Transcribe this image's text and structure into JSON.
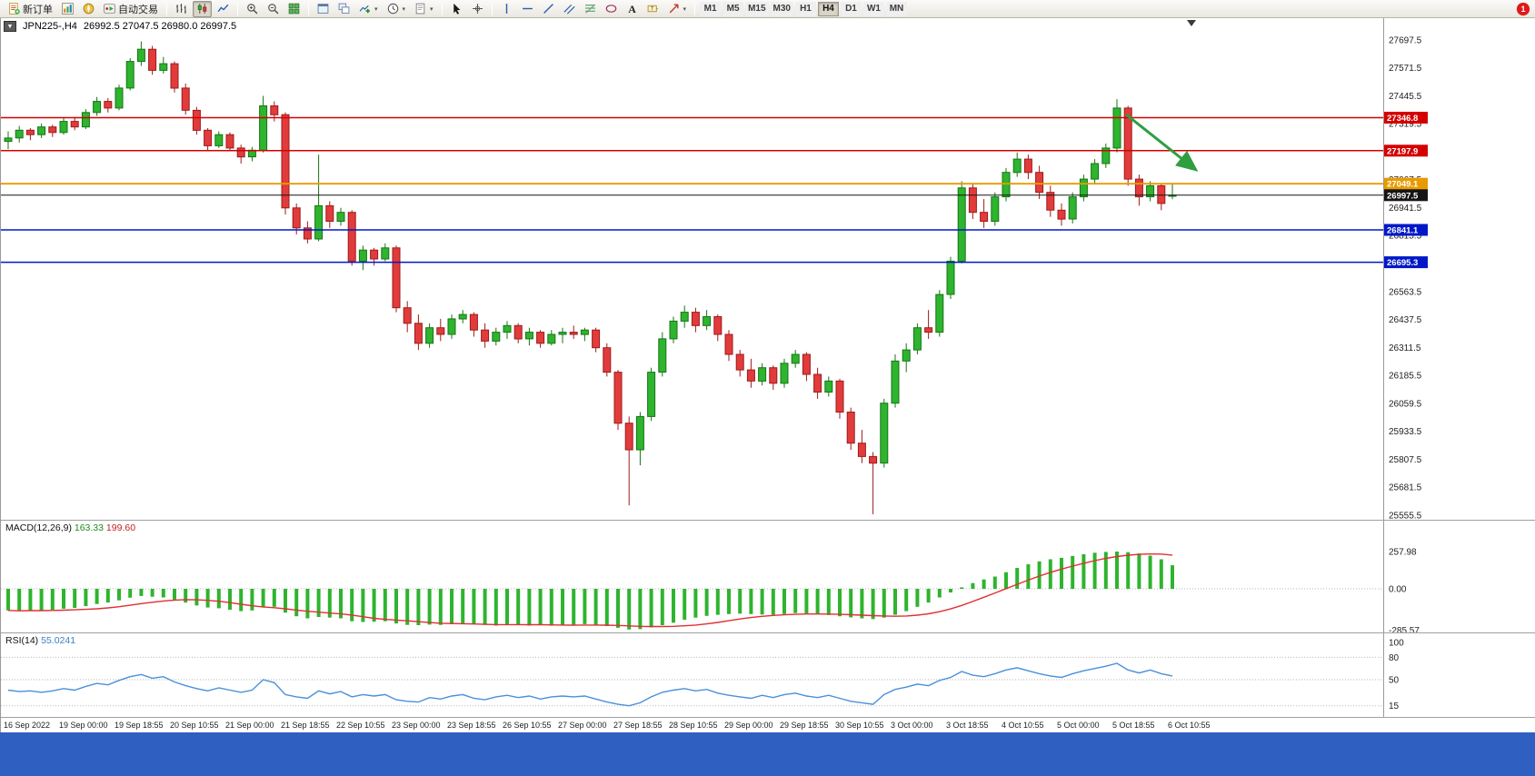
{
  "toolbar": {
    "buttons": [
      {
        "name": "new-order-button",
        "icon": "new-order-icon",
        "label": "新订单"
      },
      {
        "name": "market-watch-button",
        "icon": "market-watch-icon"
      },
      {
        "name": "navigator-button",
        "icon": "navigator-icon"
      },
      {
        "name": "autotrading-button",
        "icon": "autotrading-icon",
        "label": "自动交易"
      },
      {
        "sep": true
      },
      {
        "name": "bar-chart-button",
        "icon": "bar-chart-icon"
      },
      {
        "name": "candlestick-button",
        "icon": "candlestick-icon",
        "active": true
      },
      {
        "name": "line-chart-button",
        "icon": "line-chart-icon"
      },
      {
        "sep": true
      },
      {
        "name": "zoom-in-button",
        "icon": "zoom-in-icon"
      },
      {
        "name": "zoom-out-button",
        "icon": "zoom-out-icon"
      },
      {
        "name": "tile-windows-button",
        "icon": "tile-windows-icon"
      },
      {
        "sep": true
      },
      {
        "name": "auto-arrange-button",
        "icon": "auto-arrange-icon"
      },
      {
        "name": "cascade-button",
        "icon": "cascade-icon"
      },
      {
        "name": "indicators-button",
        "icon": "indicators-icon",
        "dropdown": true
      },
      {
        "name": "periods-button",
        "icon": "clock-icon",
        "dropdown": true
      },
      {
        "name": "templates-button",
        "icon": "template-icon",
        "dropdown": true
      },
      {
        "sep": true
      },
      {
        "name": "cursor-button",
        "icon": "cursor-icon"
      },
      {
        "name": "crosshair-button",
        "icon": "crosshair-icon"
      },
      {
        "sep": true
      },
      {
        "name": "vline-button",
        "icon": "vline-icon"
      },
      {
        "name": "hline-button",
        "icon": "hline-icon"
      },
      {
        "name": "trendline-button",
        "icon": "trendline-icon"
      },
      {
        "name": "channel-button",
        "icon": "channel-icon"
      },
      {
        "name": "fibonacci-button",
        "icon": "fibonacci-icon"
      },
      {
        "name": "shapes-button",
        "icon": "shapes-icon"
      },
      {
        "name": "text-button",
        "icon": "text-icon"
      },
      {
        "name": "label-button",
        "icon": "label-icon"
      },
      {
        "name": "arrows-button",
        "icon": "arrow-icon",
        "dropdown": true
      },
      {
        "sep": true
      }
    ],
    "timeframes": [
      "M1",
      "M5",
      "M15",
      "M30",
      "H1",
      "H4",
      "D1",
      "W1",
      "MN"
    ],
    "active_timeframe": "H4",
    "notification_count": "1"
  },
  "chart": {
    "symbol_label": "JPN225-,H4",
    "ohlc": "26992.5 27047.5 26980.0 26997.5",
    "collapse_glyph": "▼",
    "price_axis": [
      "27697.5",
      "27571.5",
      "27445.5",
      "27319.5",
      "27193.5",
      "27067.5",
      "26941.5",
      "26815.5",
      "26689.5",
      "26563.5",
      "26437.5",
      "26311.5",
      "26185.5",
      "26059.5",
      "25933.5",
      "25807.5",
      "25681.5",
      "25555.5"
    ],
    "hlines": [
      {
        "price": 27346.8,
        "label": "27346.8",
        "color": "#d40000",
        "width": 1.5
      },
      {
        "price": 27197.9,
        "label": "27197.9",
        "color": "#d40000",
        "width": 1.5
      },
      {
        "price": 27049.1,
        "label": "27049.1",
        "color": "#e89b00",
        "width": 1.8
      },
      {
        "price": 26997.5,
        "label": "26997.5",
        "color": "#151515",
        "width": 1
      },
      {
        "price": 26841.1,
        "label": "26841.1",
        "color": "#0018c8",
        "width": 1.5
      },
      {
        "price": 26695.3,
        "label": "26695.3",
        "color": "#0018c8",
        "width": 1.5
      }
    ],
    "time_axis": [
      "16 Sep 2022",
      "19 Sep 00:00",
      "19 Sep 18:55",
      "20 Sep 10:55",
      "21 Sep 00:00",
      "21 Sep 18:55",
      "22 Sep 10:55",
      "23 Sep 00:00",
      "23 Sep 18:55",
      "26 Sep 10:55",
      "27 Sep 00:00",
      "27 Sep 18:55",
      "28 Sep 10:55",
      "29 Sep 00:00",
      "29 Sep 18:55",
      "30 Sep 10:55",
      "3 Oct 00:00",
      "3 Oct 18:55",
      "4 Oct 10:55",
      "5 Oct 00:00",
      "5 Oct 18:55",
      "6 Oct 10:55"
    ]
  },
  "chart_data": {
    "type": "candlestick",
    "symbol": "JPN225-",
    "timeframe": "H4",
    "candles": [
      [
        27240,
        27285,
        27205,
        27255
      ],
      [
        27255,
        27310,
        27235,
        27290
      ],
      [
        27290,
        27300,
        27245,
        27270
      ],
      [
        27270,
        27320,
        27255,
        27305
      ],
      [
        27305,
        27315,
        27260,
        27280
      ],
      [
        27280,
        27345,
        27270,
        27330
      ],
      [
        27330,
        27350,
        27290,
        27305
      ],
      [
        27305,
        27385,
        27295,
        27370
      ],
      [
        27370,
        27440,
        27355,
        27420
      ],
      [
        27420,
        27435,
        27370,
        27390
      ],
      [
        27390,
        27495,
        27380,
        27480
      ],
      [
        27480,
        27615,
        27470,
        27600
      ],
      [
        27600,
        27690,
        27580,
        27655
      ],
      [
        27655,
        27670,
        27540,
        27560
      ],
      [
        27560,
        27620,
        27545,
        27590
      ],
      [
        27590,
        27600,
        27460,
        27480
      ],
      [
        27480,
        27500,
        27360,
        27380
      ],
      [
        27380,
        27395,
        27270,
        27290
      ],
      [
        27290,
        27300,
        27195,
        27220
      ],
      [
        27220,
        27285,
        27210,
        27270
      ],
      [
        27270,
        27280,
        27195,
        27210
      ],
      [
        27210,
        27225,
        27140,
        27170
      ],
      [
        27170,
        27215,
        27150,
        27200
      ],
      [
        27200,
        27445,
        27190,
        27400
      ],
      [
        27400,
        27420,
        27330,
        27360
      ],
      [
        27360,
        27370,
        26910,
        26940
      ],
      [
        26940,
        26960,
        26820,
        26850
      ],
      [
        26850,
        26880,
        26780,
        26800
      ],
      [
        26800,
        27180,
        26790,
        26950
      ],
      [
        26950,
        26970,
        26850,
        26880
      ],
      [
        26880,
        26940,
        26860,
        26920
      ],
      [
        26920,
        26930,
        26680,
        26700
      ],
      [
        26700,
        26770,
        26660,
        26750
      ],
      [
        26750,
        26760,
        26680,
        26710
      ],
      [
        26710,
        26780,
        26700,
        26760
      ],
      [
        26760,
        26770,
        26470,
        26490
      ],
      [
        26490,
        26520,
        26380,
        26420
      ],
      [
        26420,
        26460,
        26300,
        26330
      ],
      [
        26330,
        26420,
        26310,
        26400
      ],
      [
        26400,
        26440,
        26340,
        26370
      ],
      [
        26370,
        26460,
        26350,
        26440
      ],
      [
        26440,
        26480,
        26420,
        26460
      ],
      [
        26460,
        26470,
        26360,
        26390
      ],
      [
        26390,
        26420,
        26310,
        26340
      ],
      [
        26340,
        26400,
        26320,
        26380
      ],
      [
        26380,
        26430,
        26350,
        26410
      ],
      [
        26410,
        26420,
        26330,
        26350
      ],
      [
        26350,
        26400,
        26320,
        26380
      ],
      [
        26380,
        26390,
        26310,
        26330
      ],
      [
        26330,
        26390,
        26320,
        26370
      ],
      [
        26370,
        26400,
        26330,
        26380
      ],
      [
        26380,
        26410,
        26350,
        26370
      ],
      [
        26370,
        26400,
        26340,
        26390
      ],
      [
        26390,
        26400,
        26290,
        26310
      ],
      [
        26310,
        26330,
        26180,
        26200
      ],
      [
        26200,
        26210,
        25940,
        25970
      ],
      [
        25970,
        26000,
        25600,
        25850
      ],
      [
        25850,
        26020,
        25780,
        26000
      ],
      [
        26000,
        26220,
        25980,
        26200
      ],
      [
        26200,
        26380,
        26180,
        26350
      ],
      [
        26350,
        26450,
        26330,
        26430
      ],
      [
        26430,
        26500,
        26400,
        26470
      ],
      [
        26470,
        26490,
        26380,
        26410
      ],
      [
        26410,
        26480,
        26390,
        26450
      ],
      [
        26450,
        26460,
        26340,
        26370
      ],
      [
        26370,
        26390,
        26250,
        26280
      ],
      [
        26280,
        26300,
        26180,
        26210
      ],
      [
        26210,
        26260,
        26130,
        26160
      ],
      [
        26160,
        26240,
        26140,
        26220
      ],
      [
        26220,
        26230,
        26120,
        26150
      ],
      [
        26150,
        26260,
        26130,
        26240
      ],
      [
        26240,
        26300,
        26220,
        26280
      ],
      [
        26280,
        26290,
        26160,
        26190
      ],
      [
        26190,
        26220,
        26080,
        26110
      ],
      [
        26110,
        26180,
        26090,
        26160
      ],
      [
        26160,
        26170,
        25990,
        26020
      ],
      [
        26020,
        26040,
        25850,
        25880
      ],
      [
        25880,
        25940,
        25790,
        25820
      ],
      [
        25820,
        25840,
        25560,
        25790
      ],
      [
        25790,
        26080,
        25770,
        26060
      ],
      [
        26060,
        26280,
        26040,
        26250
      ],
      [
        26250,
        26330,
        26200,
        26300
      ],
      [
        26300,
        26420,
        26280,
        26400
      ],
      [
        26400,
        26480,
        26350,
        26380
      ],
      [
        26380,
        26570,
        26360,
        26550
      ],
      [
        26550,
        26720,
        26530,
        26700
      ],
      [
        26700,
        27060,
        26690,
        27030
      ],
      [
        27030,
        27050,
        26890,
        26920
      ],
      [
        26920,
        26980,
        26850,
        26880
      ],
      [
        26880,
        27010,
        26860,
        26990
      ],
      [
        26990,
        27120,
        26970,
        27100
      ],
      [
        27100,
        27190,
        27080,
        27160
      ],
      [
        27160,
        27180,
        27070,
        27100
      ],
      [
        27100,
        27130,
        26980,
        27010
      ],
      [
        27010,
        27040,
        26900,
        26930
      ],
      [
        26930,
        26960,
        26860,
        26890
      ],
      [
        26890,
        27010,
        26870,
        26990
      ],
      [
        26990,
        27090,
        26970,
        27070
      ],
      [
        27070,
        27160,
        27050,
        27140
      ],
      [
        27140,
        27230,
        27120,
        27210
      ],
      [
        27210,
        27430,
        27190,
        27390
      ],
      [
        27390,
        27400,
        27040,
        27070
      ],
      [
        27070,
        27090,
        26950,
        26990
      ],
      [
        26990,
        27060,
        26970,
        27040
      ],
      [
        27040,
        27050,
        26930,
        26960
      ],
      [
        26992.5,
        27047.5,
        26980,
        26997.5
      ]
    ],
    "macd": {
      "label": "MACD(12,26,9)",
      "value_main": "163.33",
      "value_signal": "199.60",
      "axis": [
        "257.98",
        "0.00",
        "-285.57"
      ],
      "histogram": [
        -150,
        -155,
        -148,
        -152,
        -145,
        -138,
        -132,
        -120,
        -105,
        -95,
        -80,
        -62,
        -50,
        -55,
        -60,
        -75,
        -95,
        -115,
        -130,
        -135,
        -145,
        -155,
        -150,
        -130,
        -125,
        -165,
        -190,
        -205,
        -195,
        -200,
        -205,
        -225,
        -230,
        -228,
        -225,
        -240,
        -250,
        -252,
        -248,
        -250,
        -245,
        -240,
        -242,
        -250,
        -255,
        -250,
        -252,
        -255,
        -252,
        -256,
        -252,
        -248,
        -245,
        -250,
        -258,
        -270,
        -282,
        -280,
        -268,
        -252,
        -235,
        -215,
        -200,
        -188,
        -180,
        -175,
        -172,
        -175,
        -178,
        -180,
        -175,
        -168,
        -170,
        -175,
        -182,
        -190,
        -198,
        -205,
        -210,
        -200,
        -180,
        -155,
        -125,
        -95,
        -60,
        -25,
        10,
        40,
        65,
        85,
        115,
        145,
        170,
        190,
        205,
        215,
        228,
        240,
        250,
        256,
        258,
        254,
        245,
        230,
        205,
        163.33
      ]
    },
    "rsi": {
      "label": "RSI(14)",
      "value": "55.0241",
      "axis": [
        "100",
        "80",
        "50",
        "15"
      ],
      "levels": [
        80,
        50,
        15
      ],
      "values": [
        36,
        34,
        35,
        33,
        35,
        38,
        36,
        41,
        45,
        43,
        49,
        54,
        57,
        52,
        54,
        47,
        42,
        38,
        35,
        39,
        36,
        33,
        36,
        50,
        46,
        30,
        27,
        25,
        35,
        31,
        34,
        27,
        30,
        28,
        30,
        23,
        21,
        20,
        26,
        24,
        28,
        30,
        25,
        23,
        27,
        29,
        26,
        28,
        24,
        27,
        28,
        27,
        28,
        24,
        20,
        17,
        15,
        19,
        27,
        33,
        36,
        38,
        35,
        37,
        32,
        29,
        27,
        25,
        29,
        26,
        30,
        32,
        28,
        26,
        29,
        25,
        21,
        19,
        17,
        30,
        37,
        40,
        44,
        42,
        49,
        53,
        61,
        56,
        54,
        58,
        63,
        66,
        62,
        58,
        55,
        53,
        58,
        62,
        65,
        68,
        72,
        63,
        59,
        63,
        58,
        55.02
      ]
    },
    "annotations": [
      {
        "name": "trend-arrow",
        "color": "#2f9e41",
        "from_price": 27360,
        "to_price": 27110,
        "from_index": 100.8,
        "to_index": 107.1
      }
    ]
  }
}
